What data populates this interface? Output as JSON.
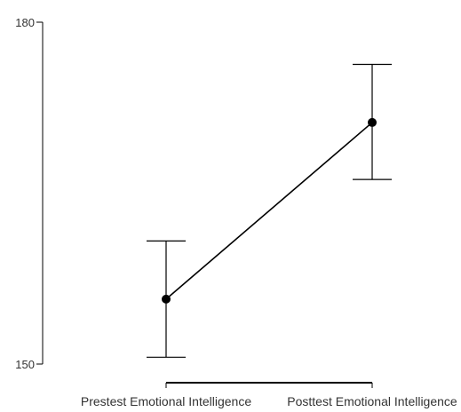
{
  "chart_data": {
    "type": "line",
    "title": "",
    "xlabel": "",
    "ylabel": "",
    "categories": [
      "Prestest Emotional Intelligence",
      "Posttest Emotional Intelligence"
    ],
    "series": [
      {
        "values": [
          155.7,
          171.2
        ],
        "error_low": [
          150.6,
          166.2
        ],
        "error_high": [
          160.8,
          176.3
        ]
      }
    ],
    "ylim": [
      150,
      180
    ],
    "y_ticks": [
      "150",
      "180"
    ],
    "grid": false,
    "legend": "none",
    "colors": {
      "line": "#000000",
      "axis": "#000000",
      "text": "#333333"
    }
  }
}
